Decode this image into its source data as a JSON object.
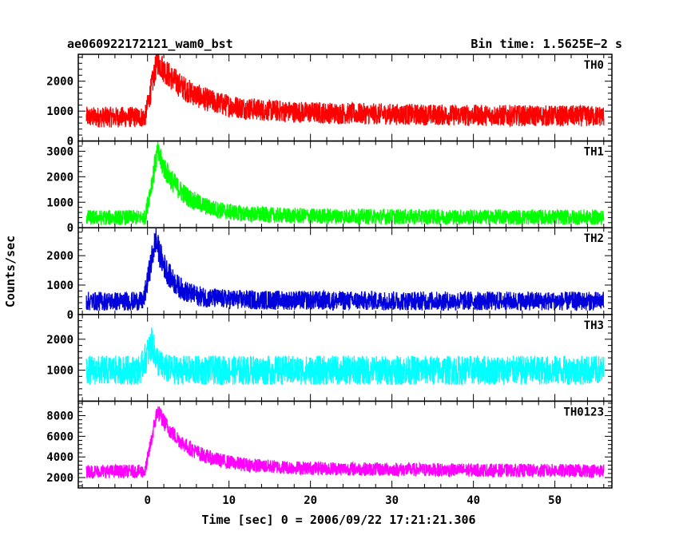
{
  "chart_data": {
    "type": "line",
    "title_left": "ae060922172121_wam0_bst",
    "title_right": "Bin time: 1.5625E−2 s",
    "xlabel": "Time [sec] 0 = 2006/09/22 17:21:21.306",
    "ylabel": "Counts/sec",
    "xlim": [
      -8.5,
      57
    ],
    "x_ticks": [
      0,
      10,
      20,
      30,
      40,
      50
    ],
    "x_tick_labels": [
      "0",
      "10",
      "20",
      "30",
      "40",
      "50"
    ],
    "bin_time": 0.015625,
    "x_range_data": [
      -7.5,
      56
    ],
    "panels": [
      {
        "name": "TH0",
        "color": "#ff0000",
        "ylim": [
          0,
          2900
        ],
        "y_ticks": [
          0,
          1000,
          2000
        ],
        "y_tick_labels": [
          "0",
          "1000",
          "2000"
        ],
        "baseline": 800,
        "spread": 700,
        "peak_time": 1.2,
        "peak_add": 1600,
        "decay": 4.0,
        "tail_add": 300,
        "tail_decay": 25
      },
      {
        "name": "TH1",
        "color": "#00ff00",
        "ylim": [
          0,
          3400
        ],
        "y_ticks": [
          0,
          1000,
          2000,
          3000
        ],
        "y_tick_labels": [
          "0",
          "1000",
          "2000",
          "3000"
        ],
        "baseline": 400,
        "spread": 600,
        "peak_time": 1.2,
        "peak_add": 2400,
        "decay": 3.0,
        "tail_add": 150,
        "tail_decay": 20
      },
      {
        "name": "TH2",
        "color": "#0000dd",
        "ylim": [
          0,
          2950
        ],
        "y_ticks": [
          0,
          1000,
          2000
        ],
        "y_tick_labels": [
          "0",
          "1000",
          "2000"
        ],
        "baseline": 450,
        "spread": 650,
        "peak_time": 1.0,
        "peak_add": 2000,
        "decay": 1.8,
        "tail_add": 100,
        "tail_decay": 15
      },
      {
        "name": "TH3",
        "color": "#00ffff",
        "ylim": [
          0,
          2800
        ],
        "y_ticks": [
          1000,
          2000
        ],
        "y_tick_labels": [
          "1000",
          "2000"
        ],
        "baseline": 1000,
        "spread": 950,
        "peak_time": 0.6,
        "peak_add": 900,
        "decay": 0.6,
        "tail_add": 0,
        "tail_decay": 10
      },
      {
        "name": "TH0123",
        "color": "#ff00ff",
        "ylim": [
          1000,
          9400
        ],
        "y_ticks": [
          2000,
          4000,
          6000,
          8000
        ],
        "y_tick_labels": [
          "2000",
          "4000",
          "6000",
          "8000"
        ],
        "baseline": 2600,
        "spread": 1300,
        "peak_time": 1.2,
        "peak_add": 5200,
        "decay": 3.5,
        "tail_add": 700,
        "tail_decay": 22
      }
    ]
  }
}
